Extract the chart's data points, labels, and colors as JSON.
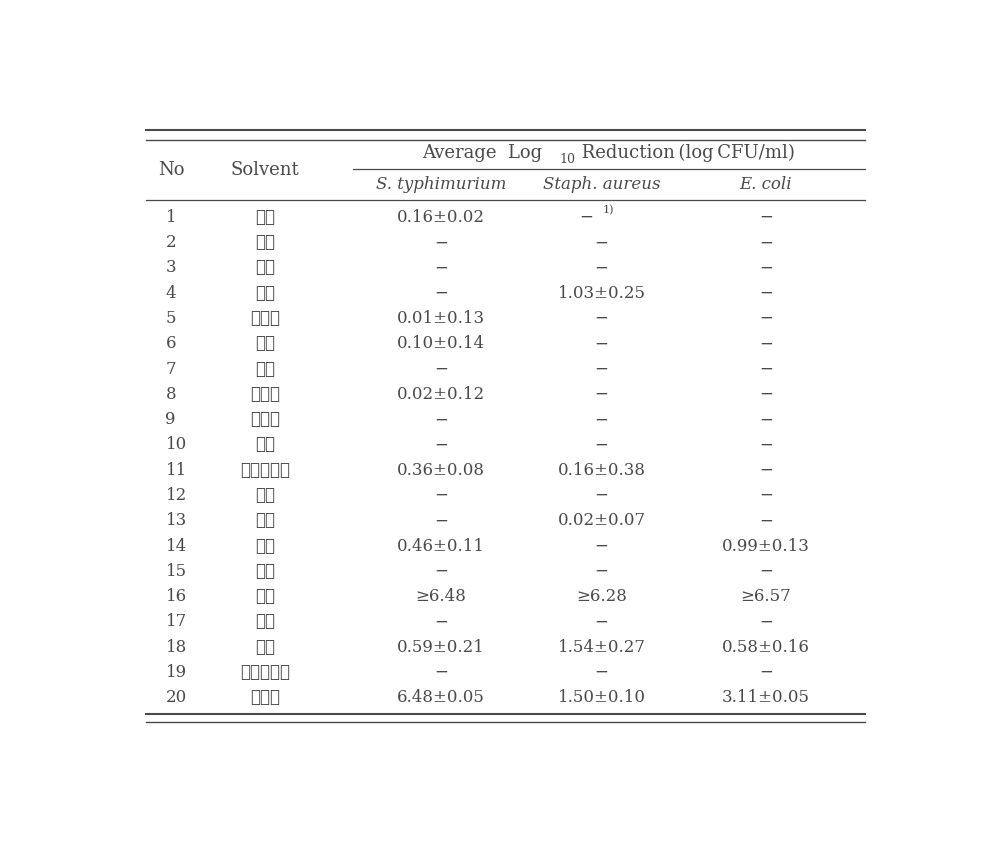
{
  "col_headers_top": [
    "No",
    "Solvent"
  ],
  "col_headers_sub": [
    "S. typhimurium",
    "Staph. aureus",
    "E. coli"
  ],
  "rows": [
    [
      "1",
      "사과",
      "0.16±0.02",
      "−1)",
      "−"
    ],
    [
      "2",
      "오이",
      "−",
      "−",
      "−"
    ],
    [
      "3",
      "녹차",
      "−",
      "−",
      "−"
    ],
    [
      "4",
      "감초",
      "−",
      "1.03±0.25",
      "−"
    ],
    [
      "5",
      "금앙자",
      "0.01±0.13",
      "−",
      "−"
    ],
    [
      "6",
      "지유",
      "0.10±0.14",
      "−",
      "−"
    ],
    [
      "7",
      "고삼",
      "−",
      "−",
      "−"
    ],
    [
      "8",
      "구기자",
      "0.02±0.12",
      "−",
      "−"
    ],
    [
      "9",
      "육두구",
      "−",
      "−",
      "−"
    ],
    [
      "10",
      "소목",
      "−",
      "−",
      "−"
    ],
    [
      "11",
      "가시오가피",
      "0.36±0.08",
      "0.16±0.38",
      "−"
    ],
    [
      "12",
      "자근",
      "−",
      "−",
      "−"
    ],
    [
      "13",
      "황백",
      "−",
      "0.02±0.07",
      "−"
    ],
    [
      "14",
      "강황",
      "0.46±0.11",
      "−",
      "0.99±0.13"
    ],
    [
      "15",
      "작약",
      "−",
      "−",
      "−"
    ],
    [
      "16",
      "정향",
      "≥6.48",
      "≥6.28",
      "≥6.57"
    ],
    [
      "17",
      "우슬",
      "−",
      "−",
      "−"
    ],
    [
      "18",
      "황련",
      "0.59±0.21",
      "1.54±0.27",
      "0.58±0.16"
    ],
    [
      "19",
      "느름나무근",
      "−",
      "−",
      "−"
    ],
    [
      "20",
      "오배자",
      "6.48±0.05",
      "1.50±0.10",
      "3.11±0.05"
    ]
  ],
  "bg_color": "#ffffff",
  "text_color": "#4a4a4a",
  "line_color": "#4a4a4a"
}
